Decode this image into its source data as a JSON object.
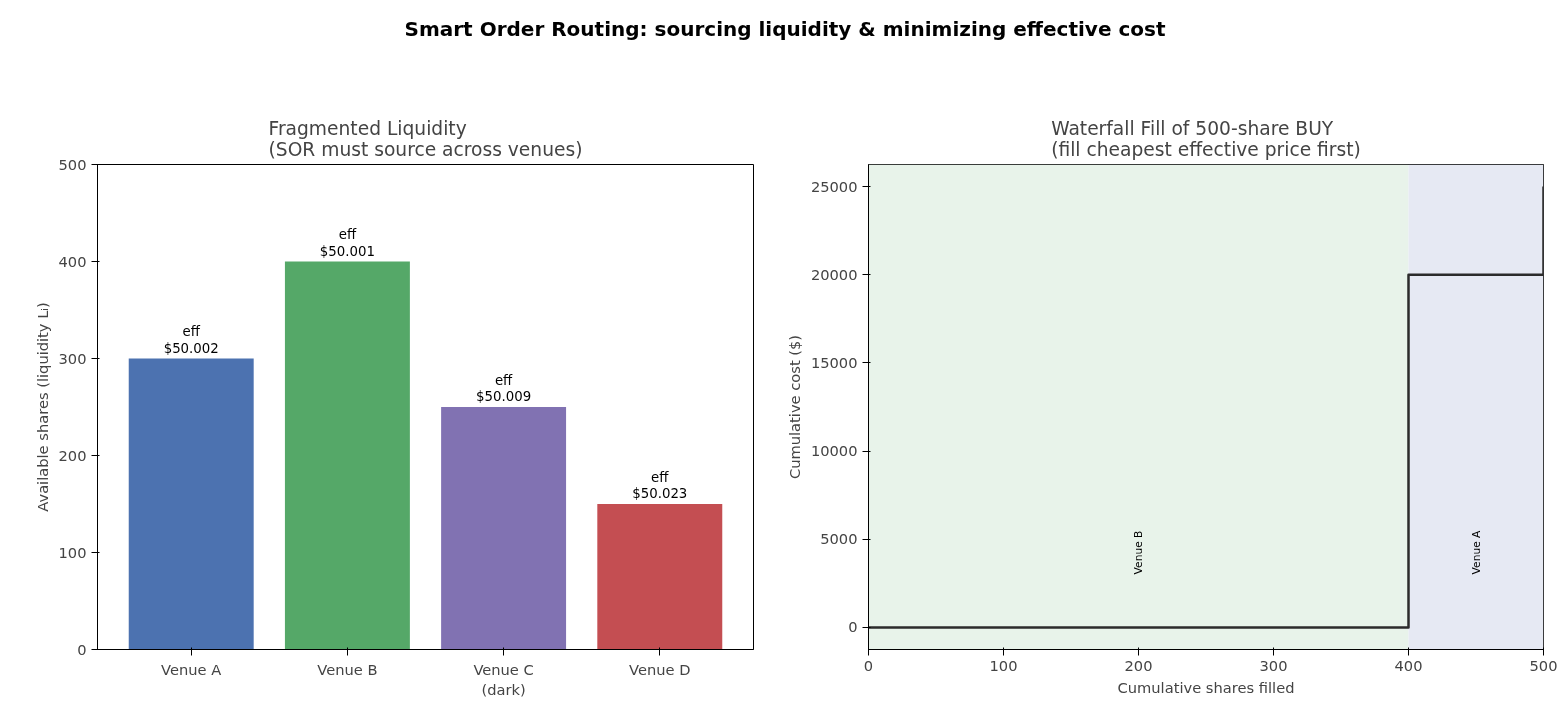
{
  "chart_data": [
    {
      "type": "bar",
      "title": "Fragmented Liquidity\n(SOR must source across venues)",
      "annotations": [
        "Smart Order Routing: sourcing liquidity & minimizing effective cost"
      ],
      "ylabel": "Available shares (liquidity Lᵢ)",
      "categories": [
        "Venue A",
        "Venue B",
        "Venue C\n(dark)",
        "Venue D"
      ],
      "values": [
        300,
        400,
        250,
        150
      ],
      "colors": [
        "#4c72b0",
        "#55a868",
        "#8172b2",
        "#c44e52"
      ],
      "value_labels": [
        "eff\n$50.002",
        "eff\n$50.001",
        "eff\n$50.009",
        "eff\n$50.023"
      ],
      "ylim": [
        0,
        500
      ],
      "yticks": [
        0,
        100,
        200,
        300,
        400,
        500
      ],
      "grid": false
    },
    {
      "type": "step",
      "title": "Waterfall Fill of 500-share BUY\n(fill cheapest effective price first)",
      "xlabel": "Cumulative shares filled",
      "ylabel": "Cumulative cost ($)",
      "x": [
        0,
        400,
        500
      ],
      "series": [
        {
          "color": "#2b2b2b",
          "values": [
            0,
            20000,
            25000
          ]
        }
      ],
      "bands": [
        {
          "axis": "x",
          "from": 0,
          "to": 400,
          "label": "Venue B",
          "color": "#e8f3ea"
        },
        {
          "axis": "x",
          "from": 400,
          "to": 500,
          "label": "Venue A",
          "color": "#e6e9f3"
        }
      ],
      "xlim": [
        0,
        500
      ],
      "xticks": [
        0,
        100,
        200,
        300,
        400,
        500
      ],
      "ylim": [
        -1250,
        26250
      ],
      "yticks": [
        0,
        5000,
        10000,
        15000,
        20000,
        25000
      ],
      "grid": false
    }
  ]
}
